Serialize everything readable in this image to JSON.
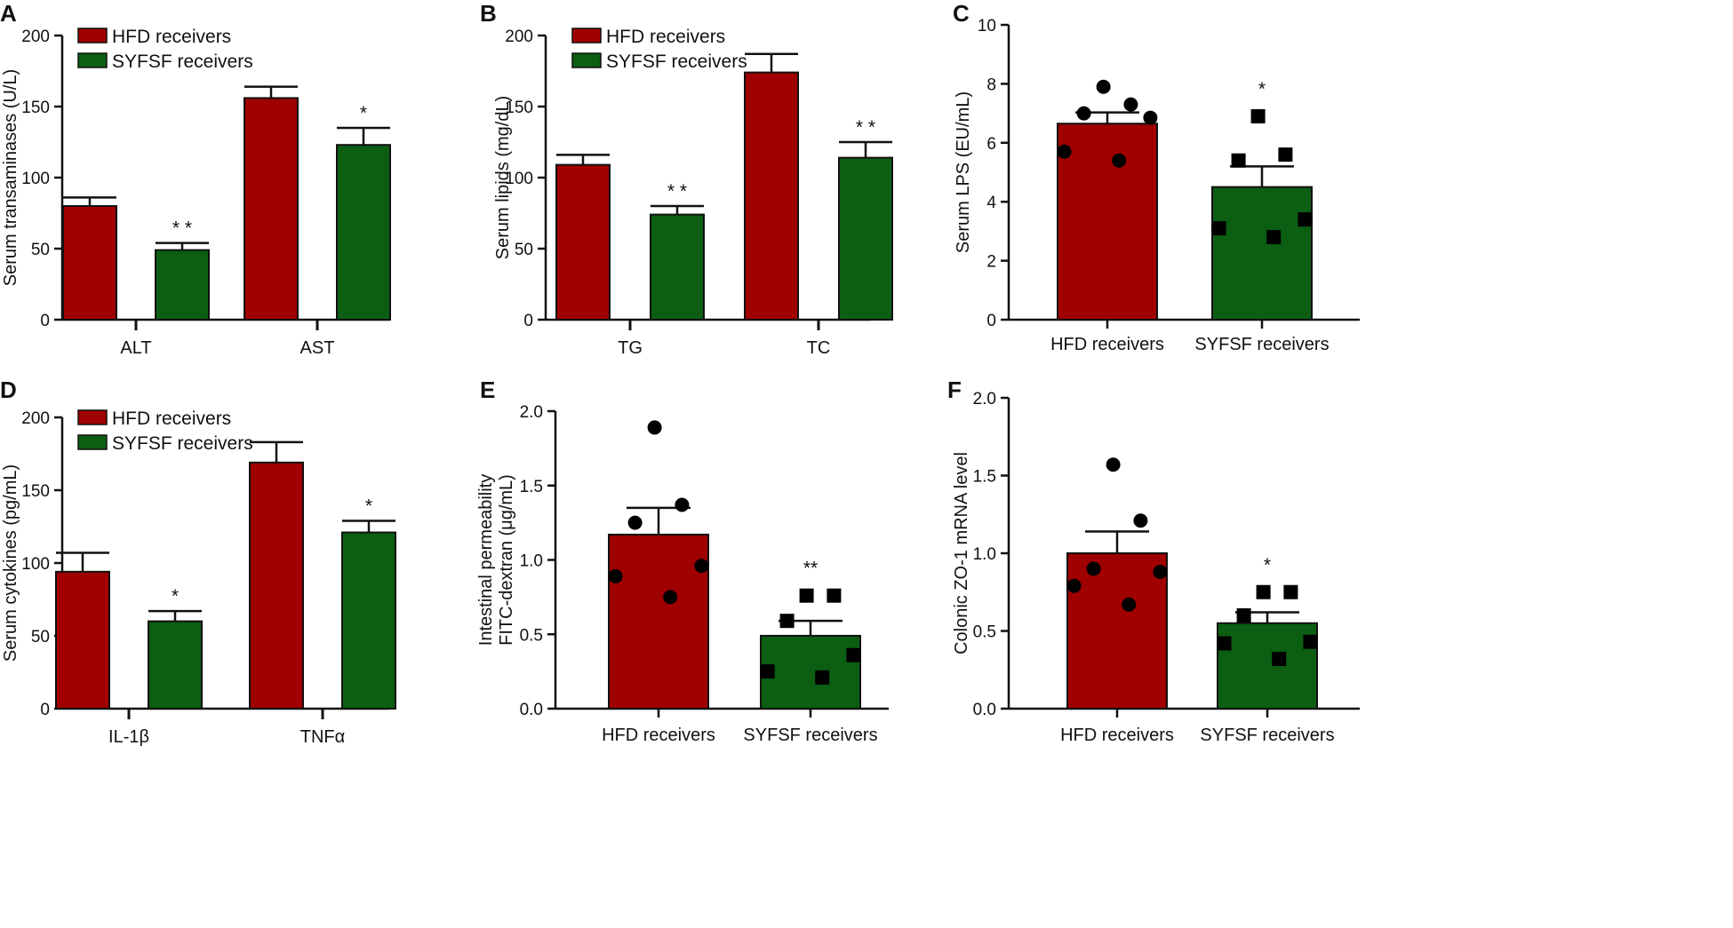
{
  "figure": {
    "description_free": true
  },
  "colors": {
    "hfd": "#a00000",
    "syfsf": "#0c5e12",
    "axis": "#111111",
    "error": "#111111"
  },
  "chart_data": [
    {
      "panel": "A",
      "type": "bar",
      "ylabel": "Serum transaminases (U/L)",
      "ylim": [
        0,
        200
      ],
      "yticks": [
        0,
        50,
        100,
        150,
        200
      ],
      "categories": [
        "ALT",
        "AST"
      ],
      "series": [
        {
          "name": "HFD receivers",
          "values": [
            80,
            156
          ],
          "errors": [
            6,
            8
          ]
        },
        {
          "name": "SYFSF receivers",
          "values": [
            49,
            123
          ],
          "errors": [
            5,
            12
          ]
        }
      ],
      "significance": [
        "* *",
        "*"
      ]
    },
    {
      "panel": "B",
      "type": "bar",
      "ylabel": "Serum lipids (mg/dL)",
      "ylim": [
        0,
        200
      ],
      "yticks": [
        0,
        50,
        100,
        150,
        200
      ],
      "categories": [
        "TG",
        "TC"
      ],
      "series": [
        {
          "name": "HFD receivers",
          "values": [
            109,
            174
          ],
          "errors": [
            7,
            13
          ]
        },
        {
          "name": "SYFSF receivers",
          "values": [
            74,
            114
          ],
          "errors": [
            6,
            11
          ]
        }
      ],
      "significance": [
        "* *",
        "* *"
      ]
    },
    {
      "panel": "C",
      "type": "bar",
      "ylabel": "Serum LPS (EU/mL)",
      "ylim": [
        0,
        10
      ],
      "yticks": [
        0,
        2,
        4,
        6,
        8,
        10
      ],
      "categories": [
        "HFD receivers",
        "SYFSF receivers"
      ],
      "values": [
        6.65,
        4.5
      ],
      "errors": [
        0.38,
        0.7
      ],
      "points": [
        [
          7.9,
          7.3,
          7.0,
          6.85,
          5.7,
          5.4
        ],
        [
          6.9,
          5.6,
          5.4,
          3.4,
          3.1,
          2.8
        ]
      ],
      "significance": [
        "",
        "*"
      ]
    },
    {
      "panel": "D",
      "type": "bar",
      "ylabel": "Serum cytokines (pg/mL)",
      "ylim": [
        0,
        200
      ],
      "yticks": [
        0,
        50,
        100,
        150,
        200
      ],
      "categories": [
        "IL-1β",
        "TNFα"
      ],
      "series": [
        {
          "name": "HFD receivers",
          "values": [
            94,
            169
          ],
          "errors": [
            13,
            14
          ]
        },
        {
          "name": "SYFSF receivers",
          "values": [
            60,
            121
          ],
          "errors": [
            7,
            8
          ]
        }
      ],
      "significance": [
        "*",
        "*"
      ]
    },
    {
      "panel": "E",
      "type": "bar",
      "ylabel": "Intestinal permeability",
      "ylabel2": "FITC-dextran (μg/mL)",
      "ylim": [
        0,
        2
      ],
      "yticks": [
        "0.0",
        "0.5",
        "1.0",
        "1.5",
        "2.0"
      ],
      "categories": [
        "HFD receivers",
        "SYFSF receivers"
      ],
      "values": [
        1.17,
        0.49
      ],
      "errors": [
        0.18,
        0.1
      ],
      "points": [
        [
          1.89,
          1.37,
          1.25,
          0.96,
          0.89,
          0.75
        ],
        [
          0.76,
          0.76,
          0.59,
          0.36,
          0.25,
          0.21
        ]
      ],
      "significance": [
        "",
        "**"
      ]
    },
    {
      "panel": "F",
      "type": "bar",
      "ylabel": "Colonic ZO-1 mRNA level",
      "ylim": [
        0,
        2
      ],
      "yticks": [
        "0.0",
        "0.5",
        "1.0",
        "1.5",
        "2.0"
      ],
      "categories": [
        "HFD receivers",
        "SYFSF receivers"
      ],
      "values": [
        1.0,
        0.55
      ],
      "errors": [
        0.14,
        0.07
      ],
      "points": [
        [
          1.57,
          1.21,
          0.9,
          0.88,
          0.79,
          0.67
        ],
        [
          0.75,
          0.75,
          0.6,
          0.43,
          0.42,
          0.32
        ]
      ],
      "significance": [
        "",
        "*"
      ]
    }
  ]
}
